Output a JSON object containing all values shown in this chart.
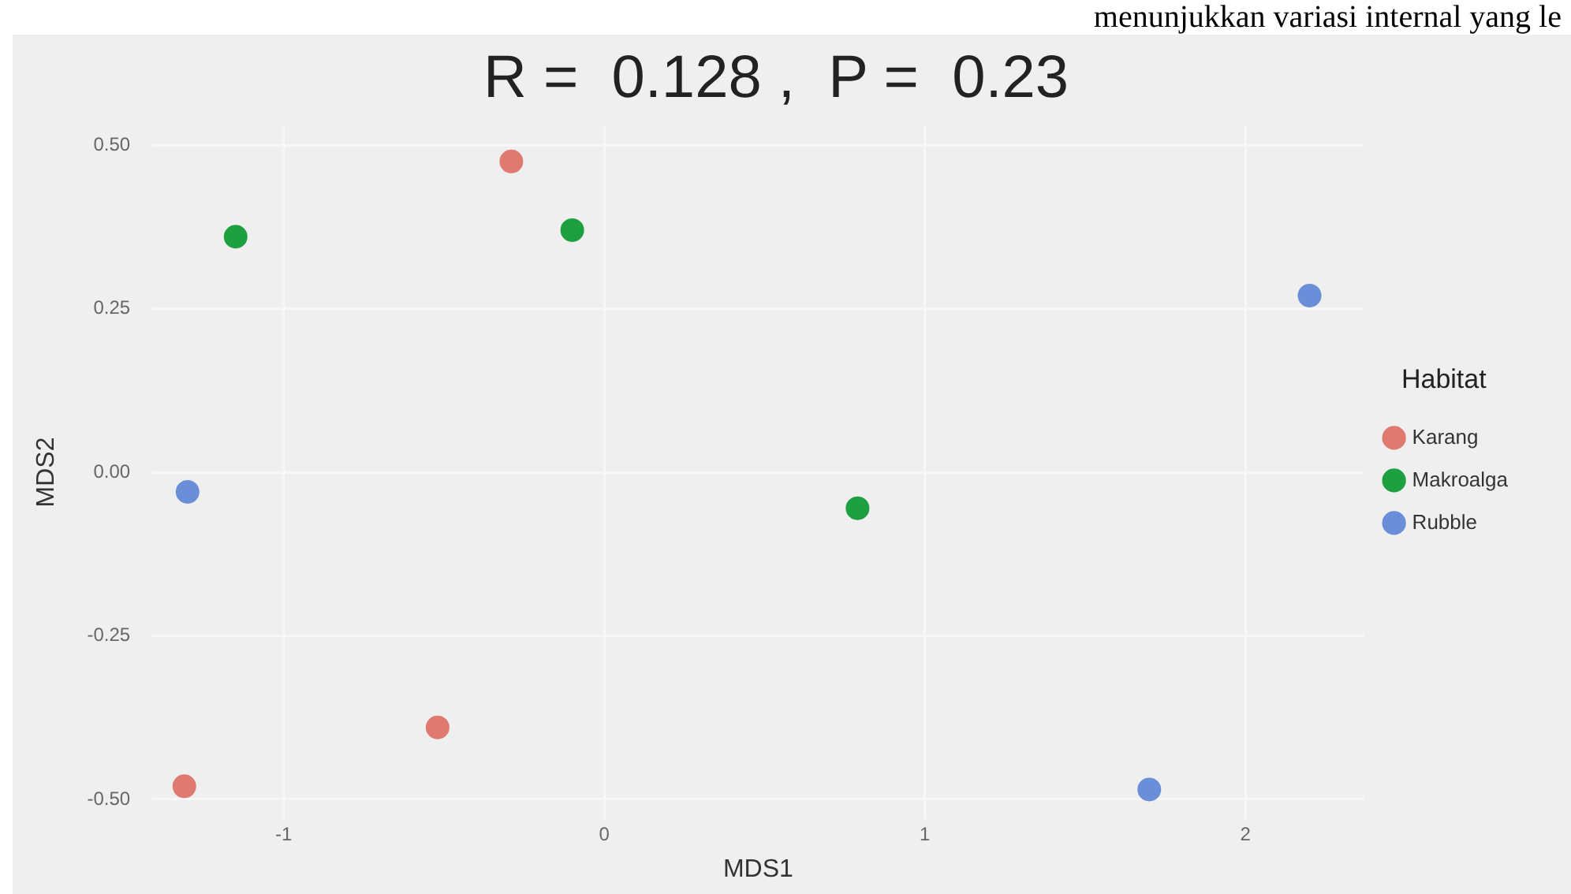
{
  "chart_data": {
    "type": "scatter",
    "title": "R =  0.128 ,  P =  0.23",
    "xlabel": "MDS1",
    "ylabel": "MDS2",
    "legend_title": "Habitat",
    "annotations": [
      "menunjukkan variasi internal yang le"
    ],
    "series": [
      {
        "name": "Karang",
        "color": "#e07a70",
        "x": [
          -0.29,
          -0.52,
          -1.31
        ],
        "values": [
          0.475,
          -0.39,
          -0.48
        ]
      },
      {
        "name": "Makroalga",
        "color": "#1fa040",
        "x": [
          -1.15,
          -0.1,
          0.79
        ],
        "values": [
          0.36,
          0.37,
          -0.055
        ]
      },
      {
        "name": "Rubble",
        "color": "#6a8fd8",
        "x": [
          -1.3,
          2.2,
          1.7
        ],
        "values": [
          -0.03,
          0.27,
          -0.485
        ]
      }
    ],
    "xlim": [
      -1.41,
      2.37
    ],
    "ylim": [
      -0.53,
      0.53
    ],
    "xticks": [
      -1,
      0,
      1,
      2
    ],
    "yticks": [
      {
        "value": -0.5,
        "label": "-0.50"
      },
      {
        "value": -0.25,
        "label": "-0.25"
      },
      {
        "value": 0,
        "label": "0.00"
      },
      {
        "value": 0.25,
        "label": "0.25"
      },
      {
        "value": 0.5,
        "label": "0.50"
      }
    ],
    "grid": true,
    "legend": "right",
    "marker": "circle"
  }
}
